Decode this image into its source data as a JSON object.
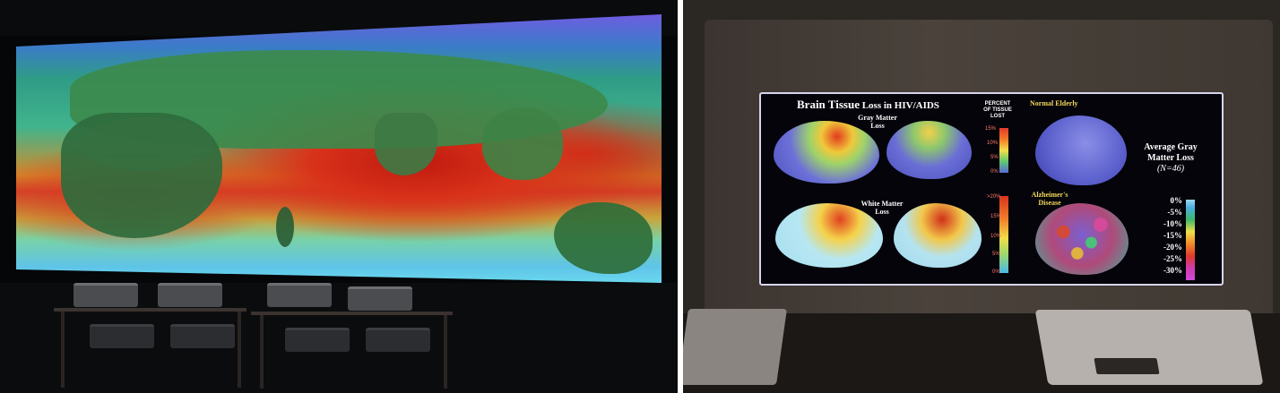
{
  "left_photo": {},
  "right_photo": {
    "slide": {
      "title_big1": "Brain Tissue",
      "title_small": " Loss in HIV/AIDS",
      "gray_matter_label": "Gray Matter\nLoss",
      "white_matter_label": "White Matter\nLoss",
      "percent_label": "PERCENT\nOF TISSUE\nLOST",
      "normal_elderly": "Normal Elderly",
      "alzheimers": "Alzheimer's\nDisease",
      "avg_gray_line1": "Average Gray",
      "avg_gray_line2": "Matter Loss",
      "avg_gray_n": "(N=46)",
      "gm_ticks": [
        "15%",
        "10%",
        "5%",
        "0%"
      ],
      "wm_ticks": [
        ">20%",
        "15%",
        "10%",
        "5%",
        "0%"
      ],
      "legend_ticks": [
        "0%",
        "-5%",
        "-10%",
        "-15%",
        "-20%",
        "-25%",
        "-30%"
      ]
    }
  }
}
